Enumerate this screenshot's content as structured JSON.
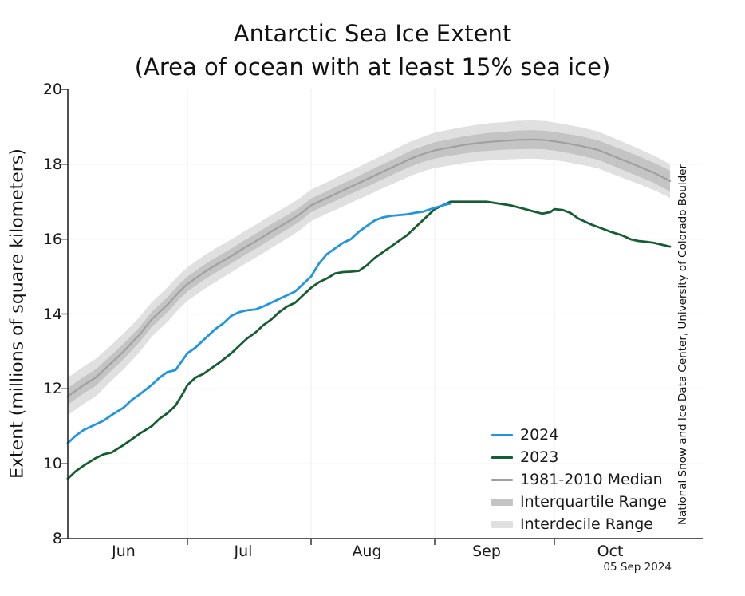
{
  "header": {
    "title": "Antarctic Sea Ice Extent",
    "subtitle": "(Area of ocean with at least 15% sea ice)"
  },
  "axes": {
    "ylabel": "Extent (millions of square kilometers)",
    "yticks": [
      8,
      10,
      12,
      14,
      16,
      18,
      20
    ],
    "month_labels": [
      {
        "label": "Jun",
        "day": 14
      },
      {
        "label": "Jul",
        "day": 44
      },
      {
        "label": "Aug",
        "day": 75
      },
      {
        "label": "Sep",
        "day": 105
      },
      {
        "label": "Oct",
        "day": 136
      }
    ],
    "month_tick_days": [
      30,
      61,
      92,
      122
    ]
  },
  "attribution": "National Snow and Ice Data Center, University of Colorado Boulder",
  "date_label": "05 Sep 2024",
  "colors": {
    "blue_2024": "#2196e0",
    "green_2023": "#155d33",
    "median": "#a0a0a0",
    "iqr": "#c4c4c4",
    "idr": "#e0e0e0",
    "grid": "#efefef",
    "axis": "#262626",
    "text": "#1a1a1a"
  },
  "chart_data": {
    "type": "line",
    "title": "Antarctic Sea Ice Extent",
    "subtitle": "(Area of ocean with at least 15% sea ice)",
    "xlabel": "",
    "ylabel": "Extent (millions of square kilometers)",
    "ylim": [
      8,
      20
    ],
    "grid": true,
    "legend_position": "lower right",
    "x_unit": "days since Jun 1",
    "x_range_days": [
      0,
      151
    ],
    "x_tick_labels": [
      "Jun",
      "Jul",
      "Aug",
      "Sep",
      "Oct"
    ],
    "legend": [
      {
        "label": "2024",
        "type": "line",
        "color": "#2196e0"
      },
      {
        "label": "2023",
        "type": "line",
        "color": "#155d33"
      },
      {
        "label": "1981-2010 Median",
        "type": "line",
        "color": "#a0a0a0"
      },
      {
        "label": "Interquartile Range",
        "type": "band",
        "color": "#c4c4c4"
      },
      {
        "label": "Interdecile Range",
        "type": "band",
        "color": "#e0e0e0"
      }
    ],
    "series": [
      {
        "name": "2024",
        "days": [
          0,
          2,
          4,
          7,
          9,
          11,
          14,
          16,
          18,
          21,
          23,
          25,
          27,
          30,
          32,
          34,
          37,
          39,
          41,
          43,
          45,
          47,
          49,
          51,
          53,
          55,
          57,
          59,
          61,
          63,
          65,
          67,
          69,
          71,
          73,
          75,
          77,
          79,
          81,
          83,
          85,
          87,
          89,
          91,
          94,
          96
        ],
        "values": [
          10.55,
          10.75,
          10.9,
          11.05,
          11.15,
          11.3,
          11.5,
          11.7,
          11.85,
          12.1,
          12.3,
          12.45,
          12.5,
          12.95,
          13.1,
          13.3,
          13.6,
          13.75,
          13.95,
          14.05,
          14.1,
          14.12,
          14.2,
          14.3,
          14.4,
          14.5,
          14.6,
          14.8,
          15.0,
          15.35,
          15.6,
          15.75,
          15.9,
          16.0,
          16.2,
          16.35,
          16.5,
          16.58,
          16.62,
          16.64,
          16.66,
          16.7,
          16.73,
          16.8,
          16.9,
          16.95
        ]
      },
      {
        "name": "2023",
        "days": [
          0,
          2,
          4,
          7,
          9,
          11,
          14,
          16,
          18,
          21,
          23,
          25,
          27,
          29,
          30,
          32,
          34,
          36,
          38,
          41,
          43,
          45,
          47,
          49,
          51,
          53,
          55,
          57,
          59,
          61,
          63,
          65,
          67,
          69,
          71,
          73,
          75,
          77,
          79,
          81,
          83,
          85,
          87,
          89,
          92,
          94,
          96,
          99,
          102,
          105,
          108,
          111,
          114,
          117,
          119,
          121,
          122,
          124,
          126,
          128,
          131,
          134,
          136,
          139,
          141,
          143,
          145,
          147,
          149,
          151
        ],
        "values": [
          9.6,
          9.8,
          9.95,
          10.15,
          10.25,
          10.3,
          10.5,
          10.65,
          10.8,
          11.0,
          11.2,
          11.35,
          11.55,
          11.9,
          12.1,
          12.3,
          12.4,
          12.55,
          12.7,
          12.95,
          13.15,
          13.35,
          13.5,
          13.7,
          13.85,
          14.05,
          14.2,
          14.3,
          14.5,
          14.7,
          14.85,
          14.95,
          15.08,
          15.12,
          15.13,
          15.15,
          15.3,
          15.5,
          15.65,
          15.8,
          15.95,
          16.1,
          16.3,
          16.5,
          16.8,
          16.9,
          17.0,
          17.0,
          17.0,
          17.0,
          16.95,
          16.9,
          16.82,
          16.73,
          16.68,
          16.72,
          16.8,
          16.78,
          16.7,
          16.55,
          16.4,
          16.28,
          16.2,
          16.1,
          16.0,
          15.95,
          15.93,
          15.9,
          15.85,
          15.8
        ]
      },
      {
        "name": "1981-2010 Median",
        "days": [
          0,
          4,
          7,
          11,
          14,
          18,
          21,
          25,
          28,
          30,
          34,
          37,
          41,
          44,
          48,
          51,
          55,
          58,
          61,
          65,
          68,
          72,
          75,
          79,
          82,
          86,
          89,
          92,
          96,
          99,
          103,
          106,
          110,
          113,
          117,
          120,
          124,
          129,
          133,
          136,
          140,
          143,
          147,
          151
        ],
        "values": [
          11.8,
          12.1,
          12.3,
          12.7,
          13.0,
          13.45,
          13.85,
          14.25,
          14.6,
          14.8,
          15.1,
          15.3,
          15.55,
          15.75,
          16.0,
          16.2,
          16.45,
          16.65,
          16.9,
          17.1,
          17.25,
          17.45,
          17.6,
          17.8,
          17.95,
          18.15,
          18.27,
          18.37,
          18.45,
          18.51,
          18.57,
          18.6,
          18.63,
          18.65,
          18.66,
          18.64,
          18.58,
          18.48,
          18.38,
          18.25,
          18.08,
          17.95,
          17.77,
          17.55
        ]
      }
    ],
    "bands": [
      {
        "name": "Interquartile Range",
        "days": [
          0,
          4,
          7,
          11,
          14,
          18,
          21,
          25,
          28,
          30,
          34,
          37,
          41,
          44,
          48,
          51,
          55,
          58,
          61,
          65,
          68,
          72,
          75,
          79,
          82,
          86,
          89,
          92,
          96,
          99,
          103,
          106,
          110,
          113,
          117,
          120,
          124,
          129,
          133,
          136,
          140,
          143,
          147,
          151
        ],
        "low": [
          11.58,
          11.88,
          12.08,
          12.49,
          12.79,
          13.25,
          13.65,
          14.05,
          14.4,
          14.6,
          14.9,
          15.1,
          15.35,
          15.55,
          15.8,
          16.0,
          16.26,
          16.46,
          16.72,
          16.92,
          17.06,
          17.26,
          17.4,
          17.6,
          17.75,
          17.94,
          18.06,
          18.15,
          18.23,
          18.28,
          18.34,
          18.36,
          18.39,
          18.4,
          18.41,
          18.39,
          18.33,
          18.22,
          18.12,
          17.99,
          17.81,
          17.68,
          17.5,
          17.27
        ],
        "high": [
          12.02,
          12.32,
          12.52,
          12.91,
          13.21,
          13.65,
          14.05,
          14.45,
          14.8,
          15.0,
          15.3,
          15.5,
          15.75,
          15.95,
          16.2,
          16.4,
          16.64,
          16.84,
          17.08,
          17.28,
          17.44,
          17.64,
          17.8,
          18.0,
          18.15,
          18.36,
          18.48,
          18.59,
          18.67,
          18.74,
          18.8,
          18.84,
          18.87,
          18.9,
          18.91,
          18.89,
          18.83,
          18.74,
          18.64,
          18.51,
          18.35,
          18.22,
          18.04,
          17.83
        ]
      },
      {
        "name": "Interdecile Range",
        "days": [
          0,
          4,
          7,
          11,
          14,
          18,
          21,
          25,
          28,
          30,
          34,
          37,
          41,
          44,
          48,
          51,
          55,
          58,
          61,
          65,
          68,
          72,
          75,
          79,
          82,
          86,
          89,
          92,
          96,
          99,
          103,
          106,
          110,
          113,
          117,
          120,
          124,
          129,
          133,
          136,
          140,
          143,
          147,
          151
        ],
        "low": [
          11.3,
          11.6,
          11.8,
          12.22,
          12.52,
          12.98,
          13.39,
          13.79,
          14.15,
          14.35,
          14.65,
          14.85,
          15.11,
          15.31,
          15.56,
          15.76,
          16.02,
          16.22,
          16.48,
          16.68,
          16.82,
          17.02,
          17.16,
          17.36,
          17.5,
          17.69,
          17.81,
          17.9,
          17.97,
          18.03,
          18.08,
          18.1,
          18.13,
          18.14,
          18.15,
          18.13,
          18.08,
          17.98,
          17.89,
          17.76,
          17.6,
          17.48,
          17.31,
          17.1
        ],
        "high": [
          12.3,
          12.6,
          12.8,
          13.18,
          13.48,
          13.92,
          14.31,
          14.71,
          15.05,
          15.25,
          15.55,
          15.75,
          15.99,
          16.19,
          16.44,
          16.64,
          16.88,
          17.08,
          17.32,
          17.52,
          17.68,
          17.88,
          18.04,
          18.24,
          18.4,
          18.61,
          18.73,
          18.84,
          18.93,
          18.99,
          19.06,
          19.1,
          19.13,
          19.16,
          19.17,
          19.15,
          19.08,
          18.98,
          18.87,
          18.74,
          18.56,
          18.42,
          18.23,
          18.0
        ]
      }
    ]
  }
}
